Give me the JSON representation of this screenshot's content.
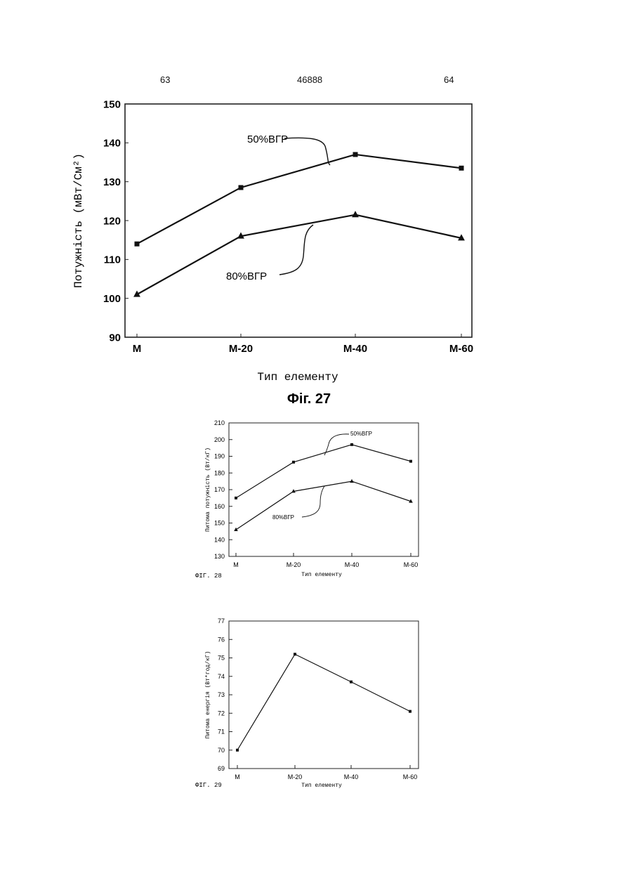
{
  "header": {
    "page_left": "63",
    "doc_number": "46888",
    "page_right": "64"
  },
  "chart_data": [
    {
      "type": "line",
      "categories": [
        "M",
        "M-20",
        "M-40",
        "M-60"
      ],
      "series": [
        {
          "name": "50%ВГР",
          "values": [
            114,
            128.5,
            137,
            133.5
          ],
          "marker": "square"
        },
        {
          "name": "80%ВГР",
          "values": [
            101,
            116,
            121.5,
            115.5
          ],
          "marker": "triangle"
        }
      ],
      "xlabel": "Тип елементу",
      "ylabel": "Потужність (мВт/См²)",
      "ylim": [
        90,
        150
      ],
      "yticks": [
        "90",
        "100",
        "110",
        "120",
        "130",
        "140",
        "150"
      ],
      "caption": "Фіг. 27"
    },
    {
      "type": "line",
      "categories": [
        "M",
        "M-20",
        "M-40",
        "M-60"
      ],
      "series": [
        {
          "name": "50%ВГР",
          "values": [
            165,
            186.5,
            197,
            187
          ],
          "marker": "square"
        },
        {
          "name": "80%ВГР",
          "values": [
            146,
            169,
            175,
            163
          ],
          "marker": "triangle"
        }
      ],
      "xlabel": "Тип елементу",
      "ylabel": "Питома потужність (Вт/кГ)",
      "ylim": [
        130,
        210
      ],
      "yticks": [
        "130",
        "140",
        "150",
        "160",
        "170",
        "180",
        "190",
        "200",
        "210"
      ],
      "caption": "ФІГ. 28"
    },
    {
      "type": "line",
      "categories": [
        "M",
        "M-20",
        "M-40",
        "M-60"
      ],
      "series": [
        {
          "name": "",
          "values": [
            70,
            75.2,
            73.7,
            72.1
          ],
          "marker": "square"
        }
      ],
      "xlabel": "Тип елементу",
      "ylabel": "Питома енергія (Вт*год/кГ)",
      "ylim": [
        69,
        77
      ],
      "yticks": [
        "69",
        "70",
        "71",
        "72",
        "73",
        "74",
        "75",
        "76",
        "77"
      ],
      "caption": "ФІГ. 29"
    }
  ]
}
